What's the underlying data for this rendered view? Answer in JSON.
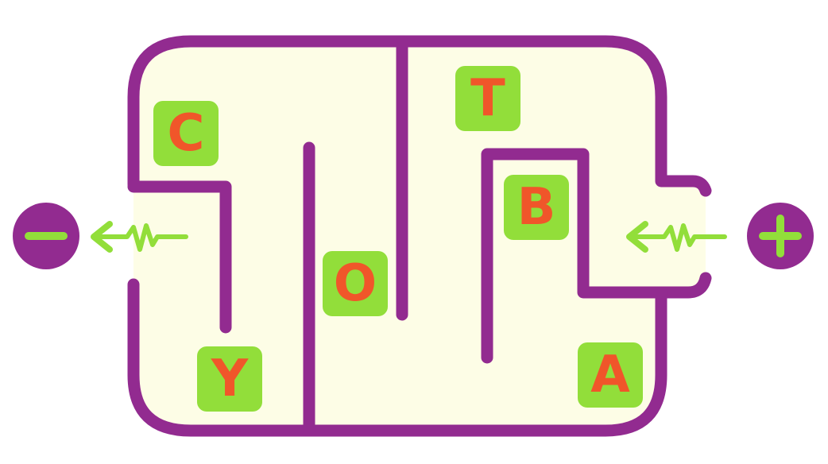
{
  "colors": {
    "wall": "#922b90",
    "floor": "#fdfde6",
    "tile": "#92de3a",
    "letter": "#f0562a",
    "terminal": "#922b90",
    "symbol": "#92de3a"
  },
  "terminals": {
    "negative": {
      "icon": "minus-icon",
      "symbol": "−"
    },
    "positive": {
      "icon": "plus-icon",
      "symbol": "+"
    }
  },
  "tiles": [
    {
      "id": "c",
      "letter": "C"
    },
    {
      "id": "t",
      "letter": "T"
    },
    {
      "id": "b",
      "letter": "B"
    },
    {
      "id": "o",
      "letter": "O"
    },
    {
      "id": "y",
      "letter": "Y"
    },
    {
      "id": "a",
      "letter": "A"
    }
  ]
}
